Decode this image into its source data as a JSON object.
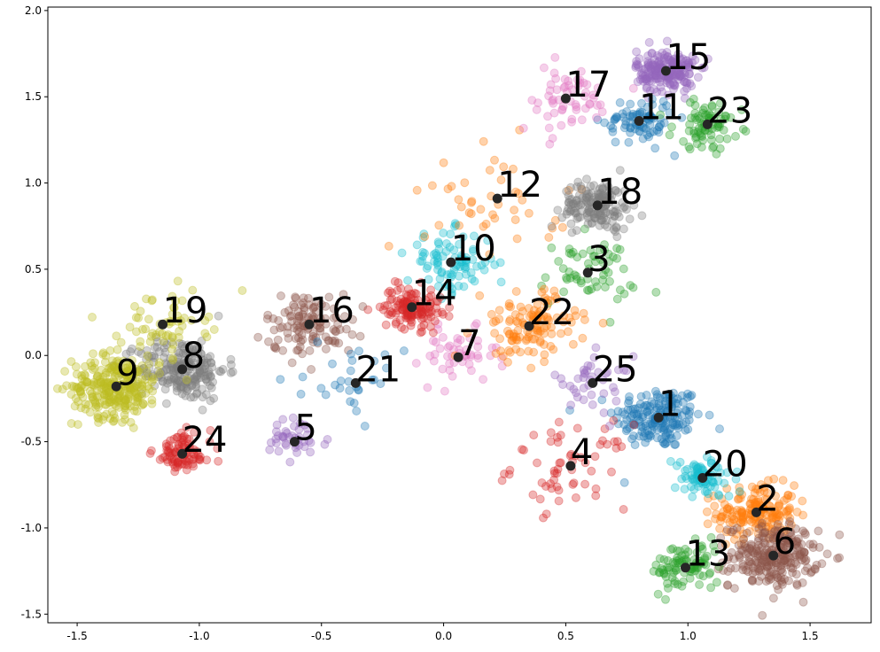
{
  "chart_data": {
    "type": "scatter",
    "title": "",
    "xlabel": "",
    "ylabel": "",
    "xlim": [
      -1.62,
      1.75
    ],
    "ylim": [
      -1.55,
      2.02
    ],
    "x_ticks": [
      "-1.5",
      "-1.0",
      "-0.5",
      "0.0",
      "0.5",
      "1.0",
      "1.5"
    ],
    "y_ticks": [
      "-1.5",
      "-1.0",
      "-0.5",
      "0.0",
      "0.5",
      "1.0",
      "1.5",
      "2.0"
    ],
    "grid": false,
    "legend": "none",
    "palette": [
      "#1f77b4",
      "#ff7f0e",
      "#2ca02c",
      "#d62728",
      "#9467bd",
      "#8c564b",
      "#e377c2",
      "#7f7f7f",
      "#bcbd22",
      "#17becf"
    ],
    "centroid_color": "#262626",
    "clusters": [
      {
        "label": "1",
        "x": 0.88,
        "y": -0.36,
        "color": "#1f77b4",
        "count": 180,
        "spread": 0.09
      },
      {
        "label": "2",
        "x": 1.28,
        "y": -0.91,
        "color": "#ff7f0e",
        "count": 170,
        "spread": 0.08
      },
      {
        "label": "3",
        "x": 0.59,
        "y": 0.48,
        "color": "#2ca02c",
        "count": 60,
        "spread": 0.1
      },
      {
        "label": "4",
        "x": 0.52,
        "y": -0.64,
        "color": "#d62728",
        "count": 60,
        "spread": 0.12
      },
      {
        "label": "5",
        "x": -0.61,
        "y": -0.5,
        "color": "#9467bd",
        "count": 40,
        "spread": 0.07
      },
      {
        "label": "6",
        "x": 1.35,
        "y": -1.16,
        "color": "#8c564b",
        "count": 260,
        "spread": 0.09
      },
      {
        "label": "7",
        "x": 0.06,
        "y": -0.01,
        "color": "#e377c2",
        "count": 50,
        "spread": 0.08
      },
      {
        "label": "8",
        "x": -1.07,
        "y": -0.08,
        "color": "#7f7f7f",
        "count": 220,
        "spread": 0.09
      },
      {
        "label": "9",
        "x": -1.34,
        "y": -0.18,
        "color": "#bcbd22",
        "count": 280,
        "spread": 0.09
      },
      {
        "label": "10",
        "x": 0.03,
        "y": 0.54,
        "color": "#17becf",
        "count": 90,
        "spread": 0.09
      },
      {
        "label": "11",
        "x": 0.8,
        "y": 1.36,
        "color": "#1f77b4",
        "count": 80,
        "spread": 0.07
      },
      {
        "label": "12",
        "x": 0.22,
        "y": 0.91,
        "color": "#ff7f0e",
        "count": 45,
        "spread": 0.15
      },
      {
        "label": "13",
        "x": 0.99,
        "y": -1.23,
        "color": "#2ca02c",
        "count": 90,
        "spread": 0.07
      },
      {
        "label": "14",
        "x": -0.13,
        "y": 0.28,
        "color": "#d62728",
        "count": 130,
        "spread": 0.06
      },
      {
        "label": "15",
        "x": 0.91,
        "y": 1.65,
        "color": "#9467bd",
        "count": 200,
        "spread": 0.06
      },
      {
        "label": "16",
        "x": -0.55,
        "y": 0.18,
        "color": "#8c564b",
        "count": 120,
        "spread": 0.09
      },
      {
        "label": "17",
        "x": 0.5,
        "y": 1.49,
        "color": "#e377c2",
        "count": 60,
        "spread": 0.1
      },
      {
        "label": "18",
        "x": 0.63,
        "y": 0.87,
        "color": "#7f7f7f",
        "count": 160,
        "spread": 0.07
      },
      {
        "label": "19",
        "x": -1.15,
        "y": 0.18,
        "color": "#bcbd22",
        "count": 60,
        "spread": 0.09
      },
      {
        "label": "20",
        "x": 1.06,
        "y": -0.71,
        "color": "#17becf",
        "count": 80,
        "spread": 0.06
      },
      {
        "label": "21",
        "x": -0.36,
        "y": -0.16,
        "color": "#1f77b4",
        "count": 30,
        "spread": 0.1
      },
      {
        "label": "22",
        "x": 0.35,
        "y": 0.17,
        "color": "#ff7f0e",
        "count": 120,
        "spread": 0.1
      },
      {
        "label": "23",
        "x": 1.08,
        "y": 1.34,
        "color": "#2ca02c",
        "count": 80,
        "spread": 0.07
      },
      {
        "label": "24",
        "x": -1.07,
        "y": -0.57,
        "color": "#d62728",
        "count": 90,
        "spread": 0.06
      },
      {
        "label": "25",
        "x": 0.61,
        "y": -0.16,
        "color": "#9467bd",
        "count": 40,
        "spread": 0.08
      }
    ]
  }
}
